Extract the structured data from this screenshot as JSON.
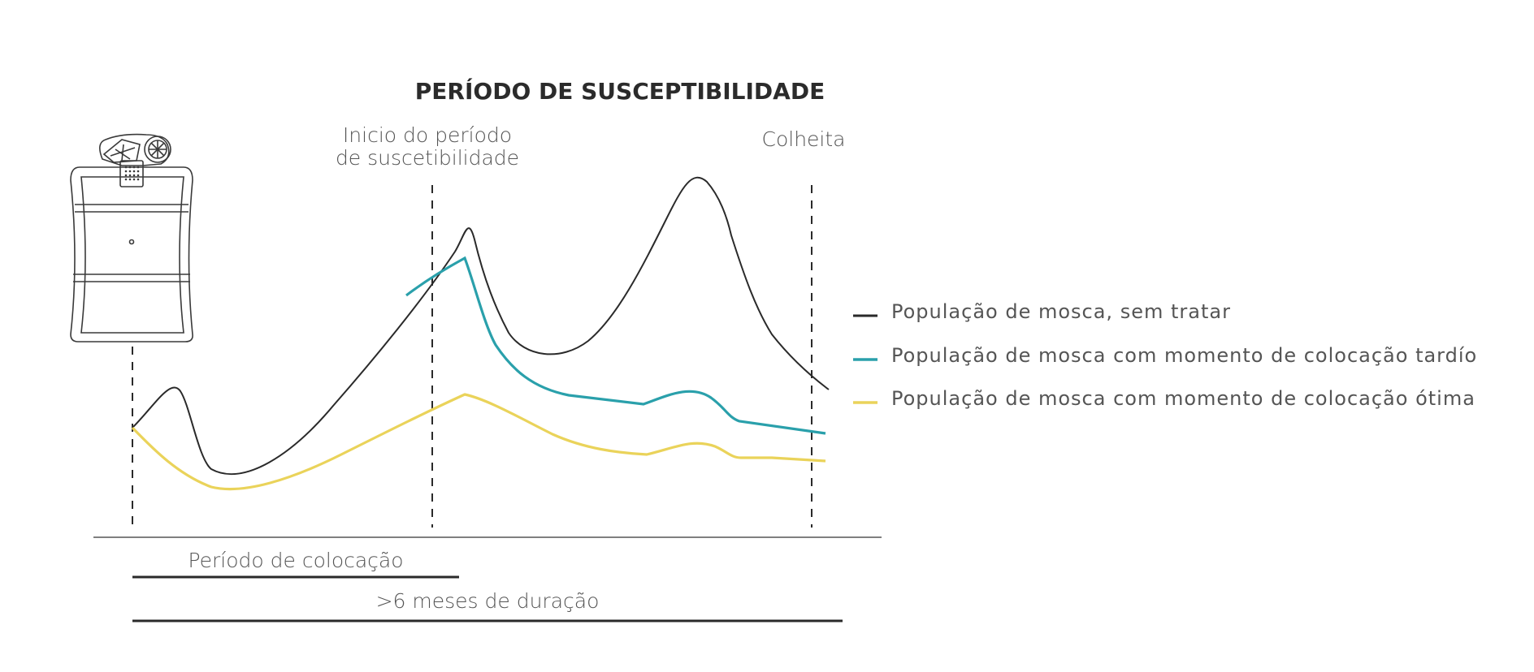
{
  "title": "PERÍODO DE SUSCEPTIBILIDADE",
  "markers": {
    "start_line1": "Inicio do período",
    "start_line2": "de suscetibilidade",
    "harvest": "Colheita"
  },
  "legend": [
    {
      "label": "População de mosca, sem tratar",
      "color": "#2a2a2a"
    },
    {
      "label": "População de mosca com momento de colocação tardío",
      "color": "#2aa0ab"
    },
    {
      "label": "População de mosca com momento de colocação ótima",
      "color": "#ead35a"
    }
  ],
  "bottom": {
    "placement_period": "Período de colocação",
    "duration": ">6 meses de duração"
  },
  "icons": {
    "dispenser": "pheromone-dispenser-icon"
  }
}
